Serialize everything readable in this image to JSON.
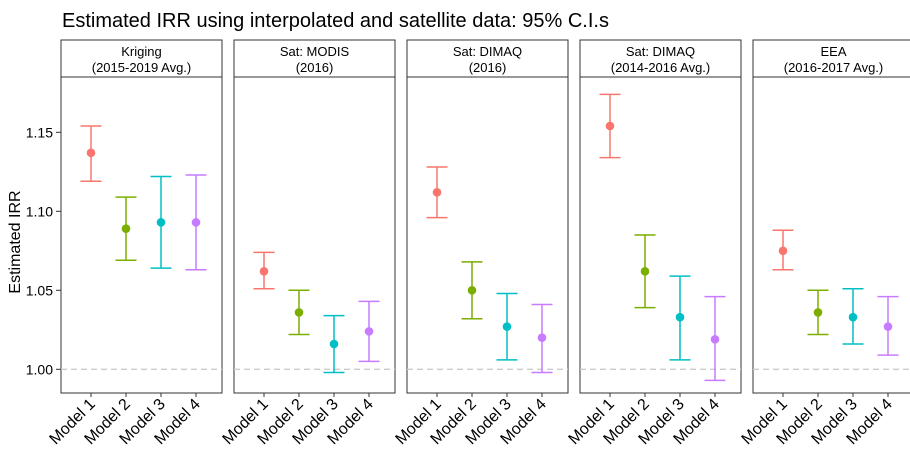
{
  "chart_data": {
    "type": "errorbar",
    "title": "Estimated IRR using interpolated and satellite data: 95% C.I.s",
    "ylabel": "Estimated IRR",
    "xlabel": "",
    "ylim": [
      0.985,
      1.185
    ],
    "yticks": [
      1.0,
      1.05,
      1.1,
      1.15
    ],
    "ytick_labels": [
      "1.00",
      "1.05",
      "1.10",
      "1.15"
    ],
    "reference_line": 1.0,
    "grid": false,
    "categories": [
      "Model 1",
      "Model 2",
      "Model 3",
      "Model 4"
    ],
    "colors": [
      "#F8766D",
      "#7CAE00",
      "#00BFC4",
      "#C77CFF"
    ],
    "panels": [
      {
        "label_line1": "Kriging",
        "label_line2": "(2015-2019 Avg.)",
        "points": [
          {
            "estimate": 1.137,
            "lower": 1.119,
            "upper": 1.154
          },
          {
            "estimate": 1.089,
            "lower": 1.069,
            "upper": 1.109
          },
          {
            "estimate": 1.093,
            "lower": 1.064,
            "upper": 1.122
          },
          {
            "estimate": 1.093,
            "lower": 1.063,
            "upper": 1.123
          }
        ]
      },
      {
        "label_line1": "Sat: MODIS",
        "label_line2": "(2016)",
        "points": [
          {
            "estimate": 1.062,
            "lower": 1.051,
            "upper": 1.074
          },
          {
            "estimate": 1.036,
            "lower": 1.022,
            "upper": 1.05
          },
          {
            "estimate": 1.016,
            "lower": 0.998,
            "upper": 1.034
          },
          {
            "estimate": 1.024,
            "lower": 1.005,
            "upper": 1.043
          }
        ]
      },
      {
        "label_line1": "Sat: DIMAQ",
        "label_line2": "(2016)",
        "points": [
          {
            "estimate": 1.112,
            "lower": 1.096,
            "upper": 1.128
          },
          {
            "estimate": 1.05,
            "lower": 1.032,
            "upper": 1.068
          },
          {
            "estimate": 1.027,
            "lower": 1.006,
            "upper": 1.048
          },
          {
            "estimate": 1.02,
            "lower": 0.998,
            "upper": 1.041
          }
        ]
      },
      {
        "label_line1": "Sat: DIMAQ",
        "label_line2": "(2014-2016 Avg.)",
        "points": [
          {
            "estimate": 1.154,
            "lower": 1.134,
            "upper": 1.174
          },
          {
            "estimate": 1.062,
            "lower": 1.039,
            "upper": 1.085
          },
          {
            "estimate": 1.033,
            "lower": 1.006,
            "upper": 1.059
          },
          {
            "estimate": 1.019,
            "lower": 0.993,
            "upper": 1.046
          }
        ]
      },
      {
        "label_line1": "EEA",
        "label_line2": "(2016-2017 Avg.)",
        "points": [
          {
            "estimate": 1.075,
            "lower": 1.063,
            "upper": 1.088
          },
          {
            "estimate": 1.036,
            "lower": 1.022,
            "upper": 1.05
          },
          {
            "estimate": 1.033,
            "lower": 1.016,
            "upper": 1.051
          },
          {
            "estimate": 1.027,
            "lower": 1.009,
            "upper": 1.046
          }
        ]
      }
    ]
  }
}
